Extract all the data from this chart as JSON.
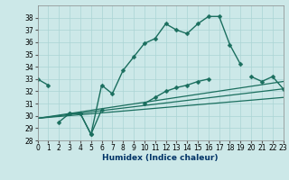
{
  "xlabel": "Humidex (Indice chaleur)",
  "xlim": [
    0,
    23
  ],
  "ylim": [
    28,
    39
  ],
  "yticks": [
    28,
    29,
    30,
    31,
    32,
    33,
    34,
    35,
    36,
    37,
    38
  ],
  "xticks": [
    0,
    1,
    2,
    3,
    4,
    5,
    6,
    7,
    8,
    9,
    10,
    11,
    12,
    13,
    14,
    15,
    16,
    17,
    18,
    19,
    20,
    21,
    22,
    23
  ],
  "bg_color": "#cce8e8",
  "grid_color": "#aad4d4",
  "line_color": "#1a6e5e",
  "series1_segments": [
    {
      "x": [
        0,
        1
      ],
      "y": [
        33.0,
        32.5
      ]
    },
    {
      "x": [
        3,
        4,
        5,
        6,
        7,
        8,
        9,
        10,
        11,
        12,
        13,
        14,
        15,
        16,
        17,
        18,
        19
      ],
      "y": [
        30.2,
        30.2,
        28.5,
        32.5,
        31.8,
        33.7,
        34.8,
        35.9,
        36.3,
        37.5,
        37.0,
        36.7,
        37.5,
        38.1,
        38.1,
        35.8,
        34.2
      ]
    }
  ],
  "series2_segments": [
    {
      "x": [
        2,
        3,
        4,
        5,
        6
      ],
      "y": [
        29.5,
        30.2,
        30.2,
        28.5,
        30.5
      ]
    },
    {
      "x": [
        10,
        11,
        12,
        13,
        14,
        15,
        16
      ],
      "y": [
        31.0,
        31.5,
        32.0,
        32.3,
        32.5,
        32.8,
        33.0
      ]
    },
    {
      "x": [
        20,
        21,
        22,
        23
      ],
      "y": [
        33.2,
        32.8,
        33.2,
        32.2
      ]
    }
  ],
  "linear_lines": [
    {
      "x": [
        0,
        23
      ],
      "y": [
        29.8,
        32.2
      ]
    },
    {
      "x": [
        0,
        23
      ],
      "y": [
        29.8,
        32.8
      ]
    },
    {
      "x": [
        0,
        23
      ],
      "y": [
        29.8,
        31.5
      ]
    }
  ]
}
